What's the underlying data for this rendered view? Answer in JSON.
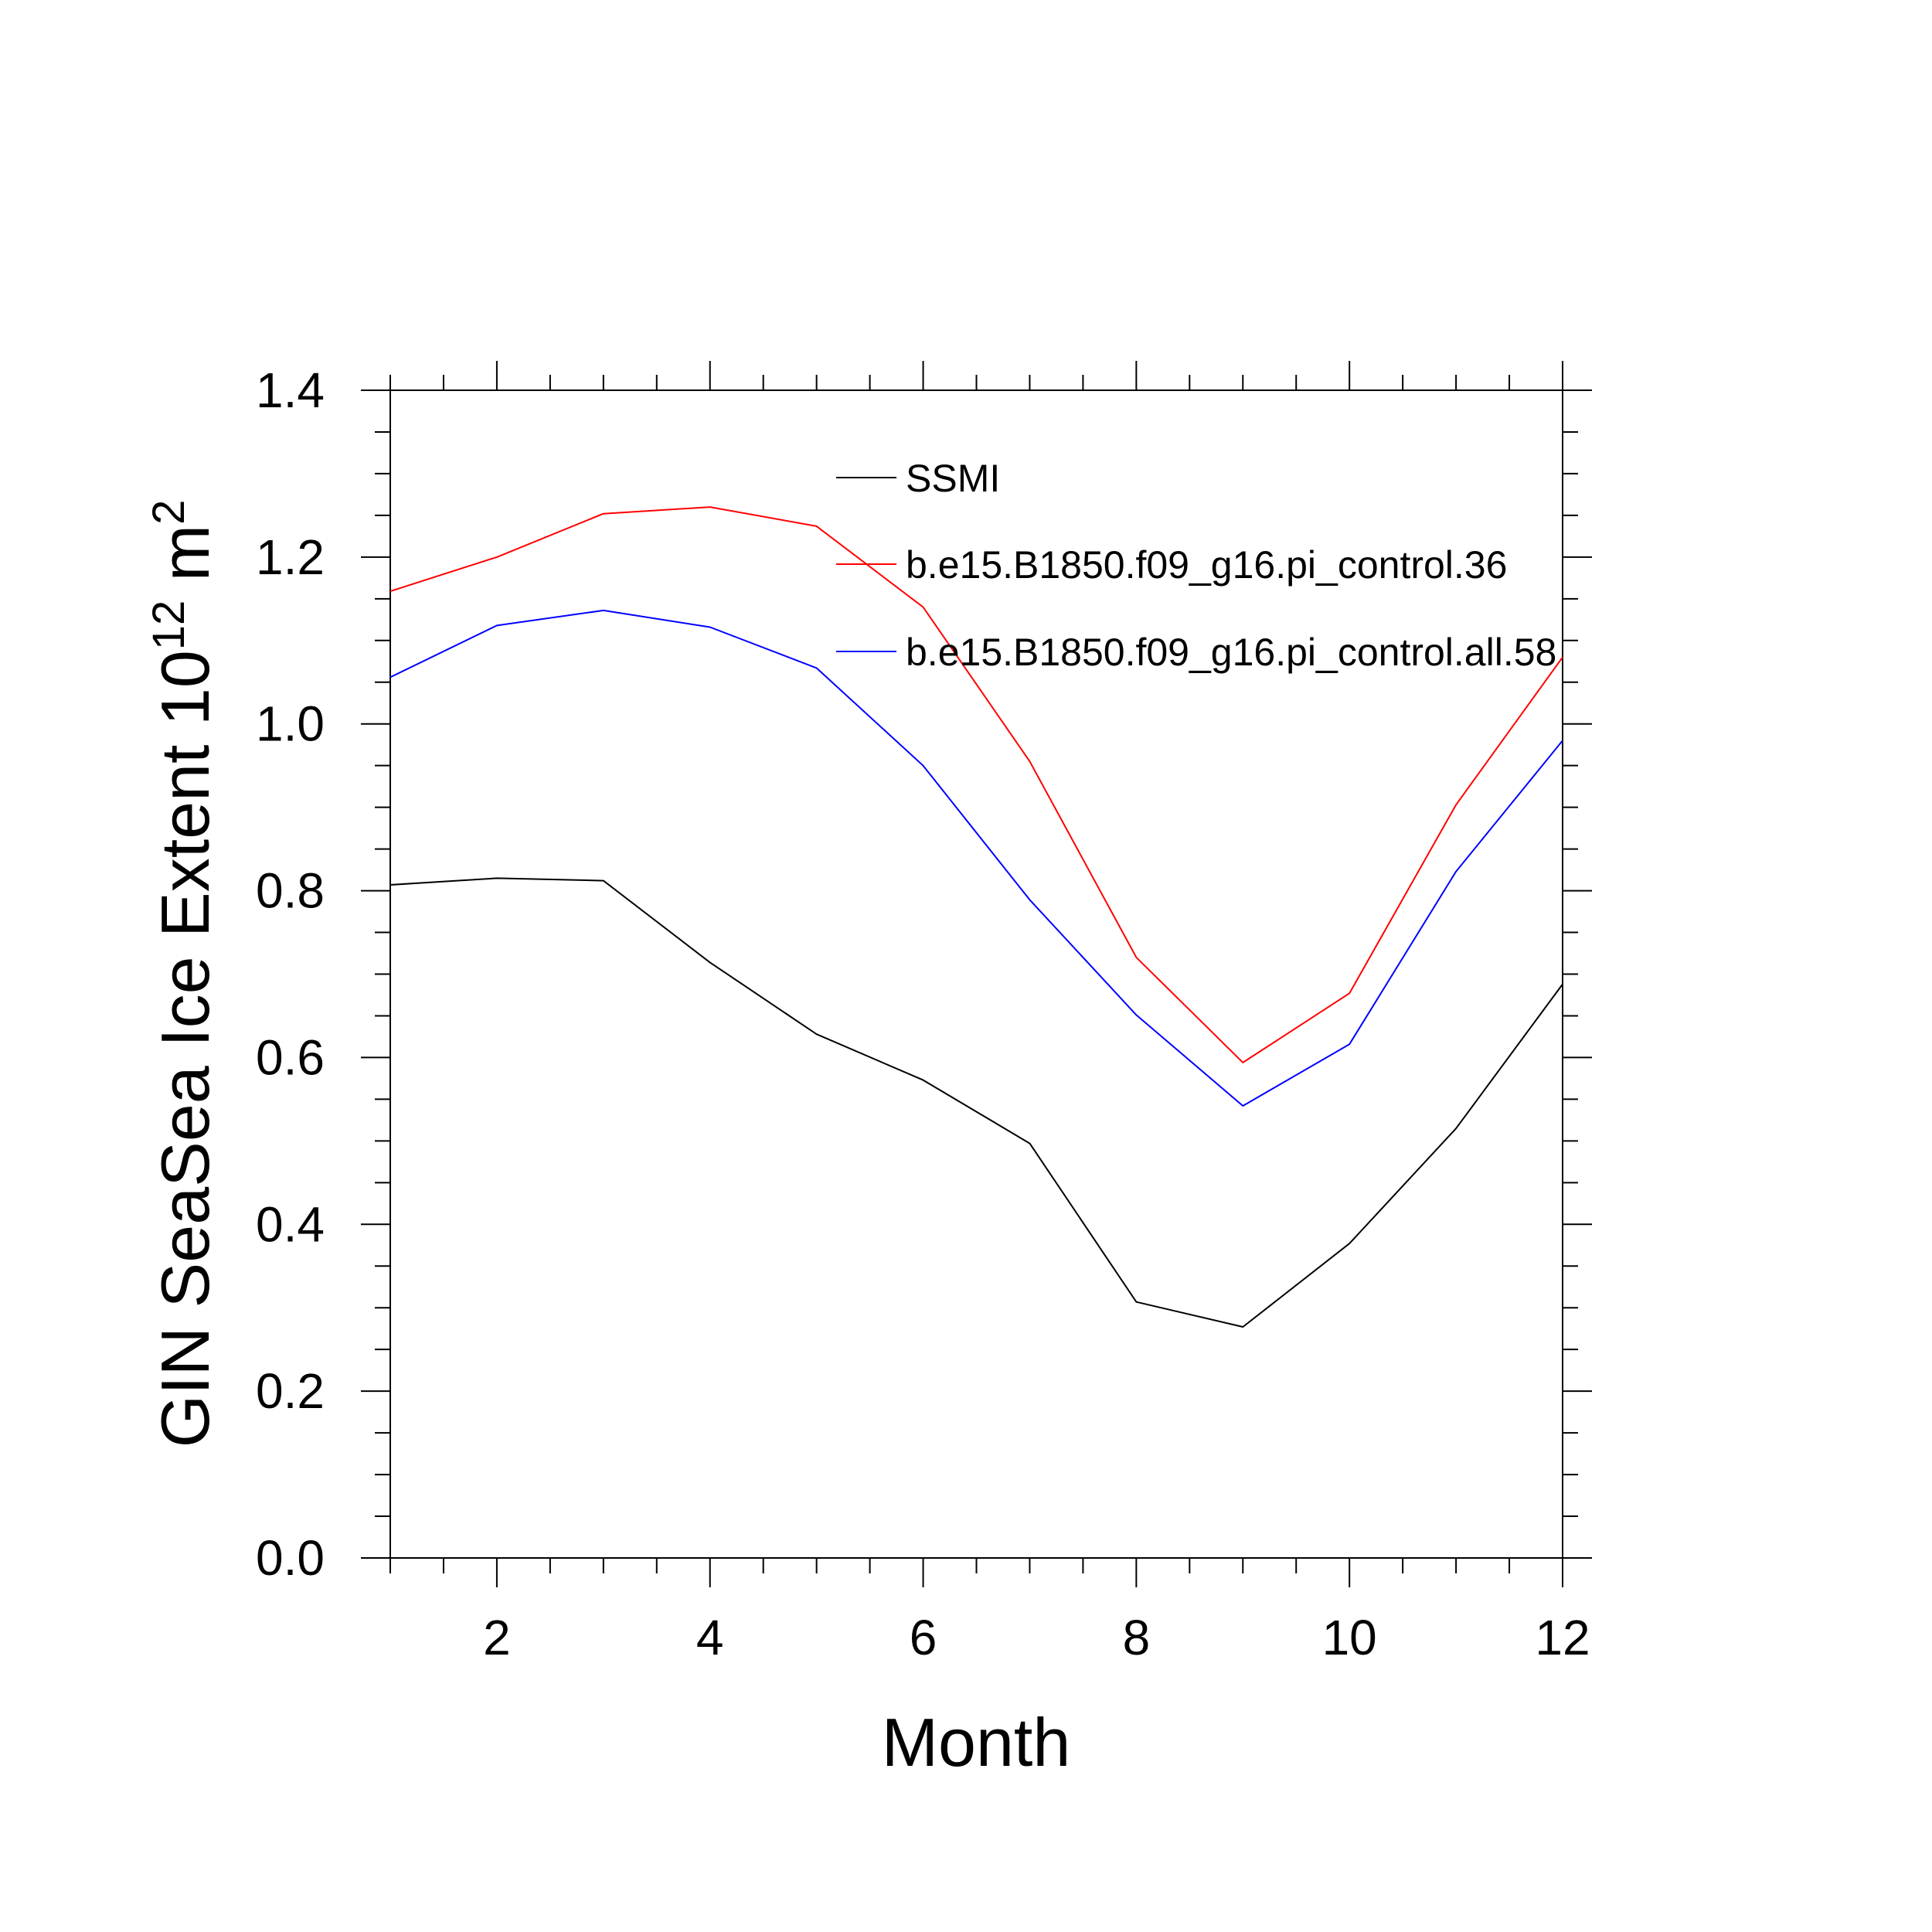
{
  "chart_data": {
    "type": "line",
    "xlabel": "Month",
    "ylabel": {
      "main": "GIN SeaSea Ice Extent 10",
      "exp": "12",
      "unit": " m",
      "unit_exp": "2"
    },
    "xlim": [
      1,
      12
    ],
    "ylim": [
      0,
      1.4
    ],
    "x_ticks": [
      2,
      4,
      6,
      8,
      10,
      12
    ],
    "y_ticks": [
      "0.0",
      "0.2",
      "0.4",
      "0.6",
      "0.8",
      "1.0",
      "1.2",
      "1.4"
    ],
    "grid": false,
    "legend_position": "top-right",
    "x": [
      1,
      2,
      3,
      4,
      5,
      6,
      7,
      8,
      9,
      10,
      11,
      12
    ],
    "series": [
      {
        "name": "SSMI",
        "color": "#000000",
        "values": [
          0.807,
          0.815,
          0.812,
          0.714,
          0.628,
          0.573,
          0.497,
          0.307,
          0.277,
          0.377,
          0.515,
          0.688
        ]
      },
      {
        "name": "b.e15.B1850.f09_g16.pi_control.36",
        "color": "#ff0000",
        "values": [
          1.159,
          1.2,
          1.252,
          1.26,
          1.237,
          1.14,
          0.955,
          0.72,
          0.594,
          0.677,
          0.903,
          1.08
        ]
      },
      {
        "name": "b.e15.B1850.f09_g16.pi_control.all.58",
        "color": "#0000ff",
        "values": [
          1.056,
          1.118,
          1.136,
          1.116,
          1.067,
          0.95,
          0.789,
          0.651,
          0.542,
          0.616,
          0.823,
          0.98
        ]
      }
    ]
  }
}
